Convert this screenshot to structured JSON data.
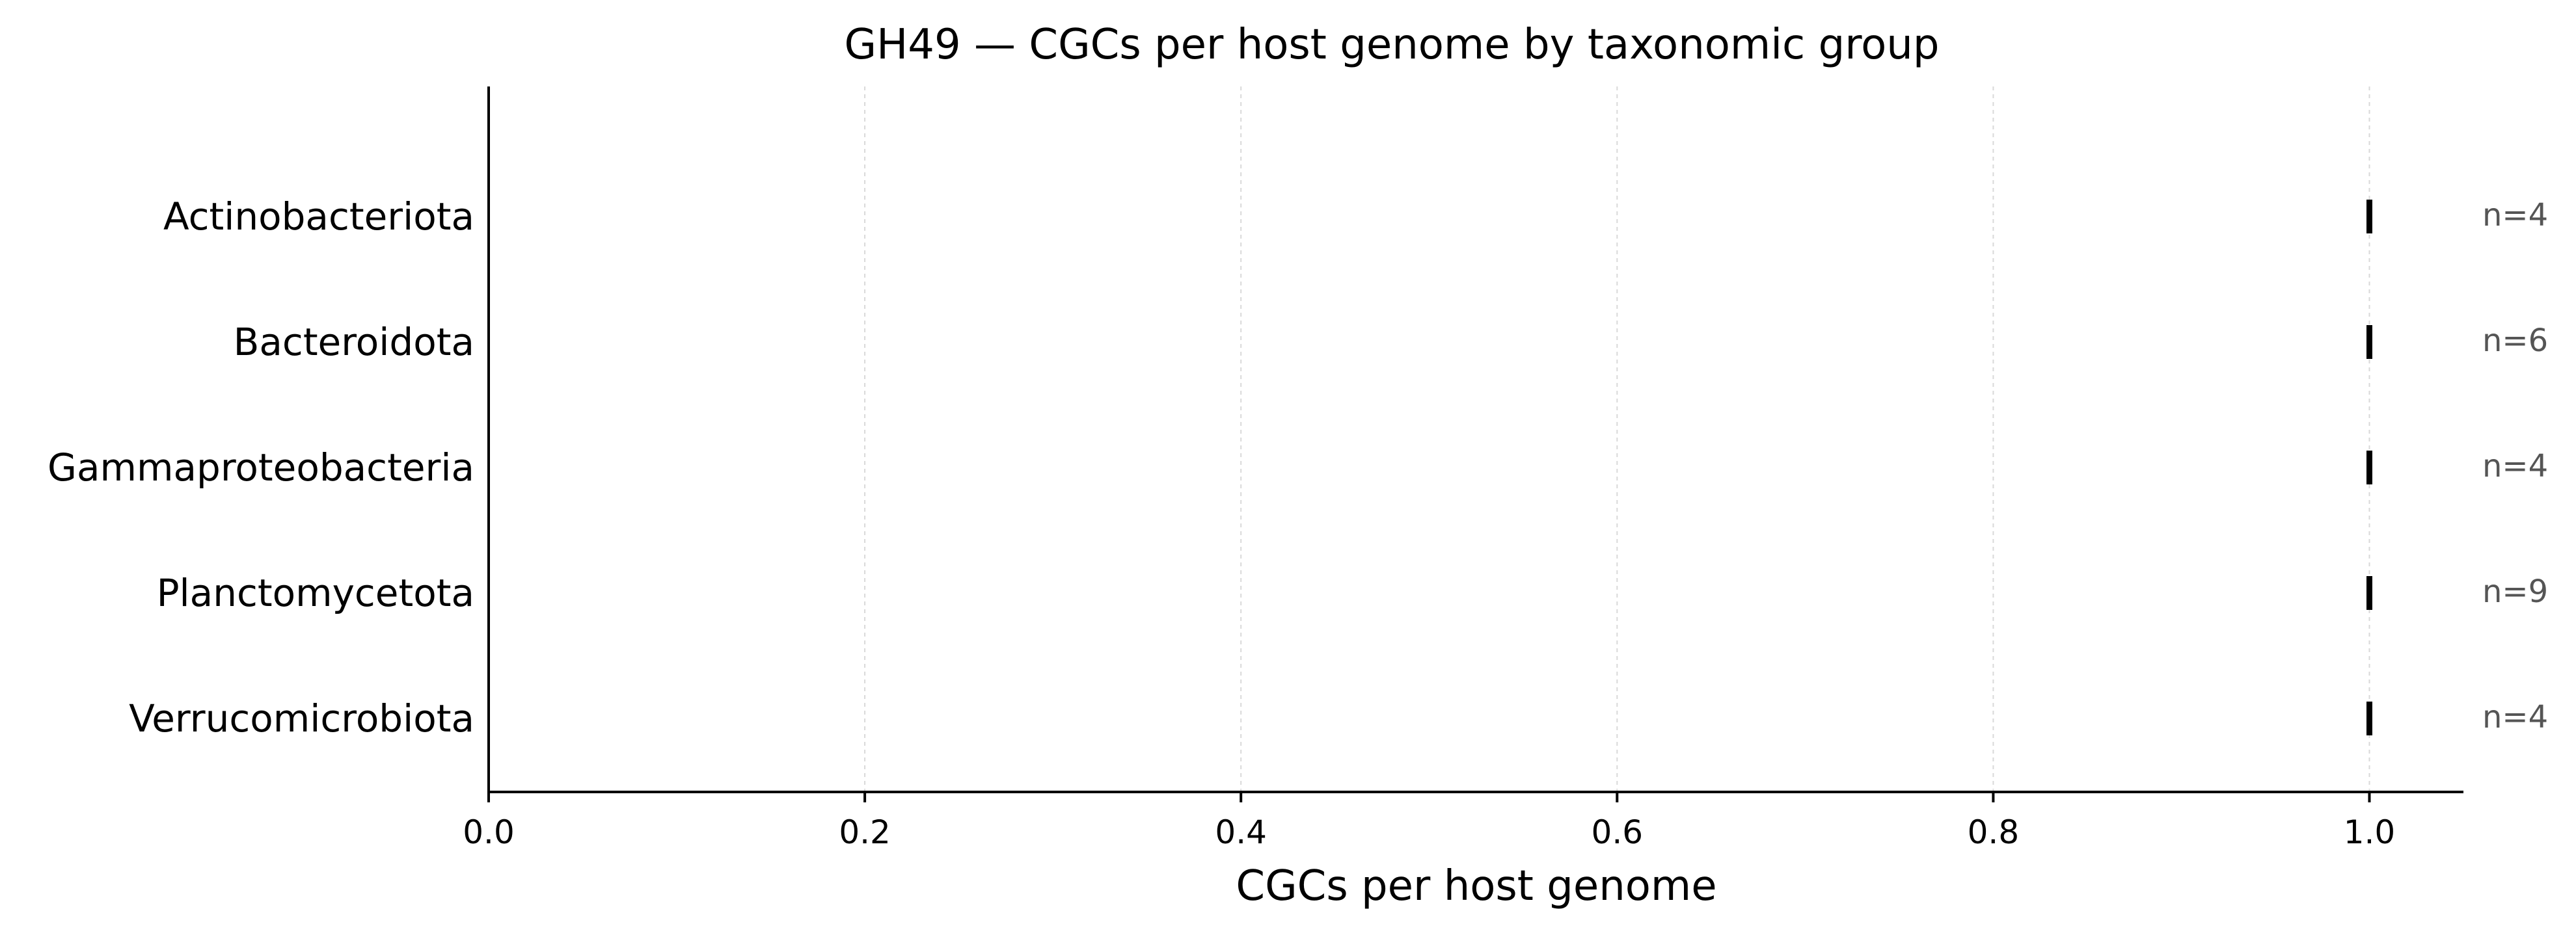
{
  "chart_data": {
    "type": "scatter",
    "title": "GH49 — CGCs per host genome by taxonomic group",
    "xlabel": "CGCs per host genome",
    "ylabel": "",
    "xlim": [
      0.0,
      1.05
    ],
    "xticks": [
      0.0,
      0.2,
      0.4,
      0.6,
      0.8,
      1.0
    ],
    "xtick_labels": [
      "0.0",
      "0.2",
      "0.4",
      "0.6",
      "0.8",
      "1.0"
    ],
    "grid": "vertical dashed",
    "categories": [
      "Actinobacteriota",
      "Bacteroidota",
      "Gammaproteobacteria",
      "Planctomycetota",
      "Verrucomicrobiota"
    ],
    "values": [
      1.0,
      1.0,
      1.0,
      1.0,
      1.0
    ],
    "annotations": [
      "n=4",
      "n=6",
      "n=4",
      "n=9",
      "n=4"
    ]
  },
  "colors": {
    "mark": "#000000",
    "annotation": "#555555",
    "grid": "#d9d9d9"
  }
}
